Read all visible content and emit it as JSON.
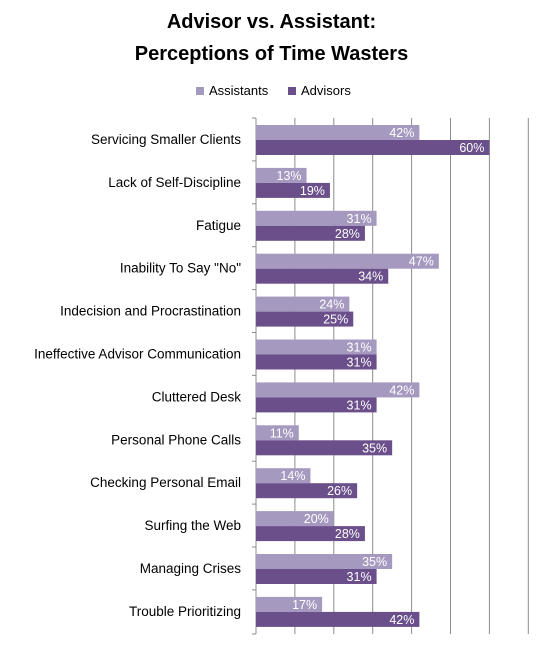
{
  "chart_data": {
    "type": "bar",
    "orientation": "horizontal",
    "title": "Advisor vs. Assistant:",
    "subtitle": "Perceptions of Time Wasters",
    "legend_position": "top",
    "xlim": [
      0,
      70
    ],
    "grid": true,
    "categories": [
      "Servicing Smaller Clients",
      "Lack of Self-Discipline",
      "Fatigue",
      "Inability To Say \"No\"",
      "Indecision and Procrastination",
      "Ineffective Advisor Communication",
      "Cluttered Desk",
      "Personal Phone Calls",
      "Checking Personal Email",
      "Surfing the Web",
      "Managing Crises",
      "Trouble Prioritizing"
    ],
    "series": [
      {
        "name": "Assistants",
        "color": "#a699c0",
        "values": [
          42,
          13,
          31,
          47,
          24,
          31,
          42,
          11,
          14,
          20,
          35,
          17
        ],
        "labels": [
          "42%",
          "13%",
          "31%",
          "47%",
          "24%",
          "31%",
          "42%",
          "11%",
          "14%",
          "20%",
          "35%",
          "17%"
        ]
      },
      {
        "name": "Advisors",
        "color": "#6b4f8b",
        "values": [
          60,
          19,
          28,
          34,
          25,
          31,
          31,
          35,
          26,
          28,
          31,
          42
        ],
        "labels": [
          "60%",
          "19%",
          "28%",
          "34%",
          "25%",
          "31%",
          "31%",
          "35%",
          "26%",
          "28%",
          "31%",
          "42%"
        ]
      }
    ]
  }
}
